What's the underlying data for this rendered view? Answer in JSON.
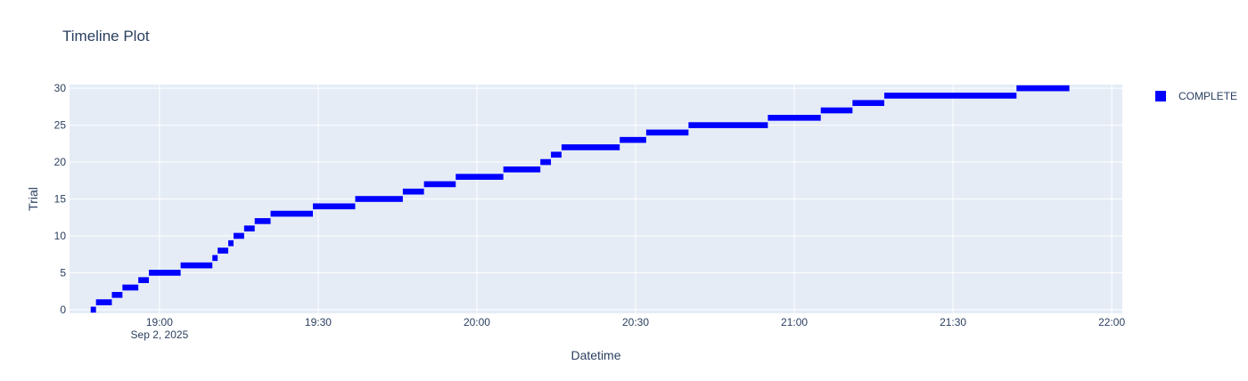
{
  "chart_data": {
    "type": "timeline",
    "title": "Timeline Plot",
    "xlabel": "Datetime",
    "ylabel": "Trial",
    "x_tick_labels": [
      "19:00",
      "19:30",
      "20:00",
      "20:30",
      "21:00",
      "21:30",
      "22:00"
    ],
    "x_tick_sublabel": "Sep 2, 2025",
    "x_ticks_hours": [
      19.0,
      19.5,
      20.0,
      20.5,
      21.0,
      21.5,
      22.0
    ],
    "y_tick_labels": [
      "0",
      "5",
      "10",
      "15",
      "20",
      "25",
      "30"
    ],
    "y_ticks": [
      0,
      5,
      10,
      15,
      20,
      25,
      30
    ],
    "xlim": [
      "2025-09-02 18:43",
      "2025-09-02 22:02"
    ],
    "ylim": [
      -0.5,
      30.5
    ],
    "grid": true,
    "legend_position": "top-right",
    "series": [
      {
        "name": "COMPLETE",
        "color": "#0000ff",
        "bars": [
          {
            "trial": 0,
            "start": "18:47",
            "end": "18:48"
          },
          {
            "trial": 1,
            "start": "18:48",
            "end": "18:51"
          },
          {
            "trial": 2,
            "start": "18:51",
            "end": "18:53"
          },
          {
            "trial": 3,
            "start": "18:53",
            "end": "18:56"
          },
          {
            "trial": 4,
            "start": "18:56",
            "end": "18:58"
          },
          {
            "trial": 5,
            "start": "18:58",
            "end": "19:04"
          },
          {
            "trial": 6,
            "start": "19:04",
            "end": "19:10"
          },
          {
            "trial": 7,
            "start": "19:10",
            "end": "19:11"
          },
          {
            "trial": 8,
            "start": "19:11",
            "end": "19:13"
          },
          {
            "trial": 9,
            "start": "19:13",
            "end": "19:14"
          },
          {
            "trial": 10,
            "start": "19:14",
            "end": "19:16"
          },
          {
            "trial": 11,
            "start": "19:16",
            "end": "19:18"
          },
          {
            "trial": 12,
            "start": "19:18",
            "end": "19:21"
          },
          {
            "trial": 13,
            "start": "19:21",
            "end": "19:29"
          },
          {
            "trial": 14,
            "start": "19:29",
            "end": "19:37"
          },
          {
            "trial": 15,
            "start": "19:37",
            "end": "19:46"
          },
          {
            "trial": 16,
            "start": "19:46",
            "end": "19:50"
          },
          {
            "trial": 17,
            "start": "19:50",
            "end": "19:56"
          },
          {
            "trial": 18,
            "start": "19:56",
            "end": "20:05"
          },
          {
            "trial": 19,
            "start": "20:05",
            "end": "20:12"
          },
          {
            "trial": 20,
            "start": "20:12",
            "end": "20:14"
          },
          {
            "trial": 21,
            "start": "20:14",
            "end": "20:16"
          },
          {
            "trial": 22,
            "start": "20:16",
            "end": "20:27"
          },
          {
            "trial": 23,
            "start": "20:27",
            "end": "20:32"
          },
          {
            "trial": 24,
            "start": "20:32",
            "end": "20:40"
          },
          {
            "trial": 25,
            "start": "20:40",
            "end": "20:55"
          },
          {
            "trial": 26,
            "start": "20:55",
            "end": "21:05"
          },
          {
            "trial": 27,
            "start": "21:05",
            "end": "21:11"
          },
          {
            "trial": 28,
            "start": "21:11",
            "end": "21:17"
          },
          {
            "trial": 29,
            "start": "21:17",
            "end": "21:42"
          },
          {
            "trial": 30,
            "start": "21:42",
            "end": "21:52"
          }
        ]
      }
    ]
  }
}
